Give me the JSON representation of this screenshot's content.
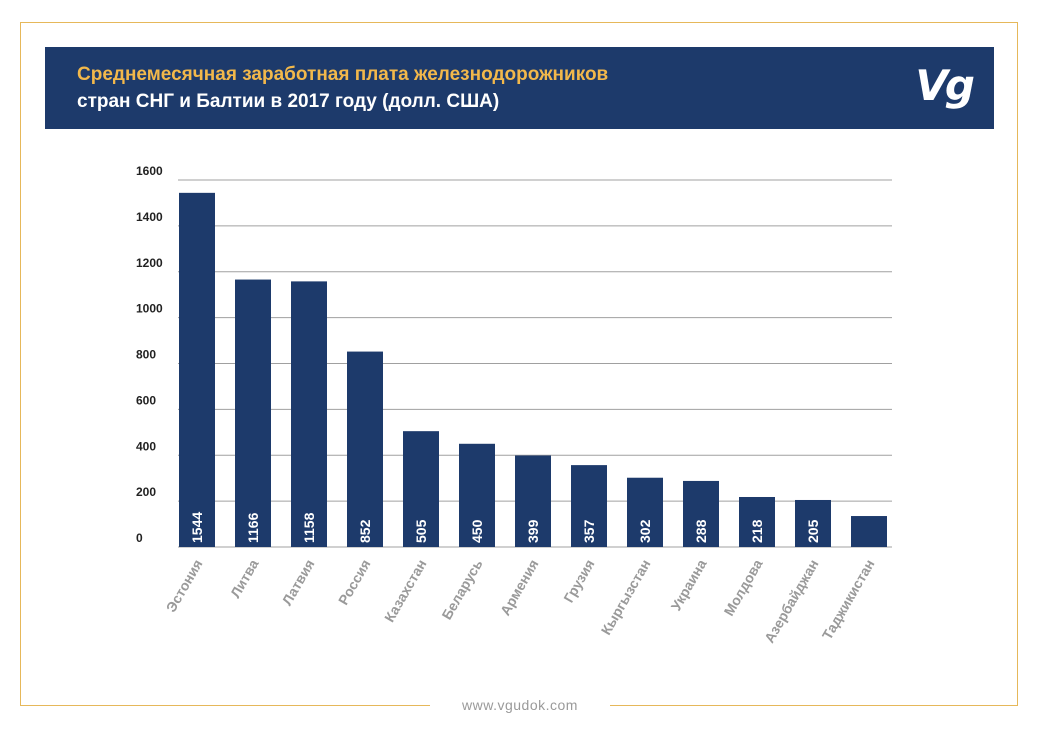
{
  "header": {
    "title_line1": "Среднемесячная заработная плата железнодорожников",
    "title_line2": "стран СНГ и Балтии в 2017 году (долл. США)",
    "logo_text": "Vg"
  },
  "footer": {
    "url": "www.vgudok.com"
  },
  "colors": {
    "bar": "#1d3a6b",
    "accent": "#f2b84b",
    "grid": "#a0a0a0",
    "frame": "#e6b85a"
  },
  "chart_data": {
    "type": "bar",
    "title": "Среднемесячная заработная плата железнодорожников стран СНГ и Балтии в 2017 году (долл. США)",
    "xlabel": "",
    "ylabel": "",
    "ylim": [
      0,
      1600
    ],
    "yticks": [
      0,
      200,
      400,
      600,
      800,
      1000,
      1200,
      1400,
      1600
    ],
    "grid": true,
    "categories": [
      "Эстония",
      "Литва",
      "Латвия",
      "Россия",
      "Казахстан",
      "Беларусь",
      "Армения",
      "Грузия",
      "Кыргызстан",
      "Украина",
      "Молдова",
      "Азербайджан",
      "Таджикистан"
    ],
    "values": [
      1544,
      1166,
      1158,
      852,
      505,
      450,
      399,
      357,
      302,
      288,
      218,
      205,
      135
    ],
    "value_labels": [
      "1544",
      "1166",
      "1158",
      "852",
      "505",
      "450",
      "399",
      "357",
      "302",
      "288",
      "218",
      "205",
      ""
    ]
  }
}
